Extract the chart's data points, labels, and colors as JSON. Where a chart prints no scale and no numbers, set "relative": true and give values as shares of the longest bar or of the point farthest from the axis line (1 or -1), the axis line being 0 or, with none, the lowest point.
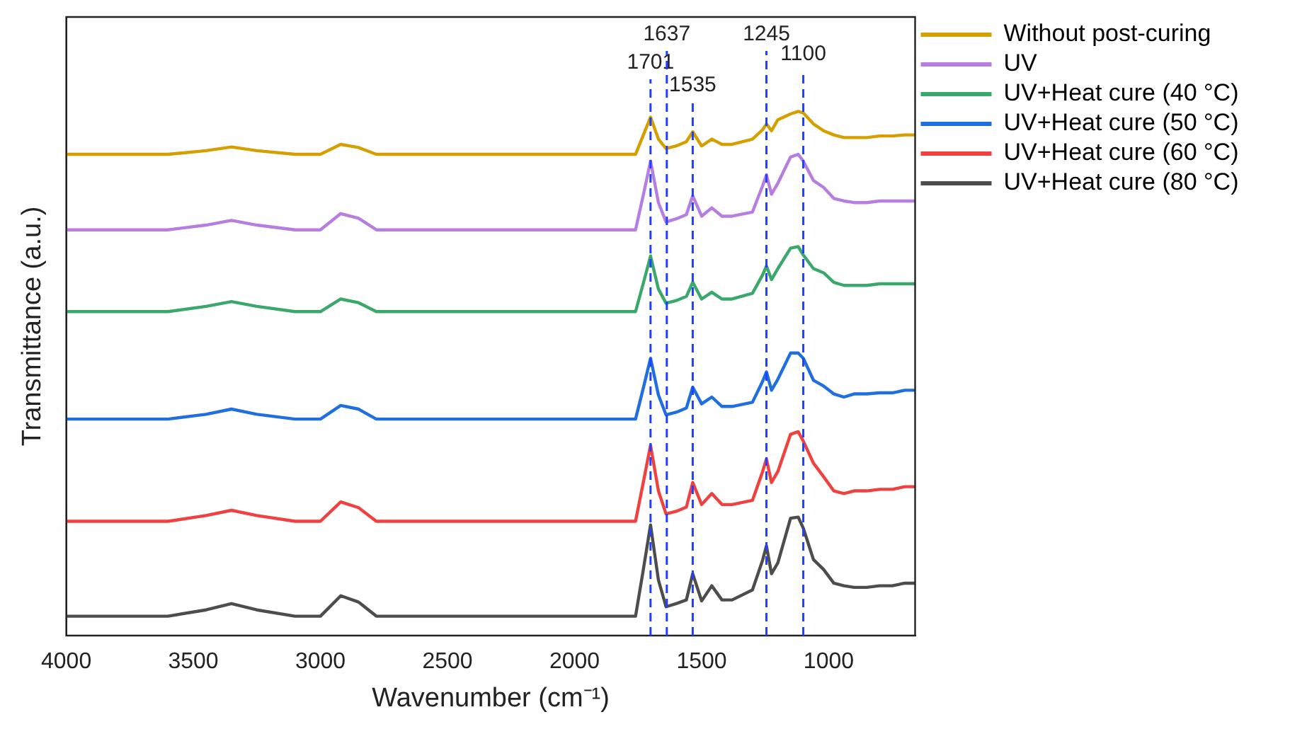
{
  "chart_data": {
    "type": "line",
    "xlabel": "Wavenumber (cm⁻¹)",
    "ylabel": "Transmittance (a.u.)",
    "relative": true,
    "legend": "top right",
    "grid": false,
    "marker": "none",
    "line_style": "solid",
    "x": [
      4000,
      3600,
      3450,
      3350,
      3250,
      3100,
      3000,
      2920,
      2850,
      2780,
      2500,
      2000,
      1760,
      1730,
      1701,
      1670,
      1640,
      1600,
      1560,
      1535,
      1500,
      1460,
      1420,
      1380,
      1300,
      1260,
      1245,
      1225,
      1200,
      1150,
      1120,
      1100,
      1060,
      1020,
      980,
      940,
      900,
      850,
      800,
      750,
      700,
      660
    ],
    "xlim": [
      4000,
      660
    ],
    "xticks": [
      4000,
      3500,
      3000,
      2500,
      2000,
      1500,
      1000
    ],
    "series": [
      {
        "name": "Without post-curing",
        "color": "#d59f00",
        "values": [
          0.918,
          0.918,
          0.925,
          0.932,
          0.925,
          0.918,
          0.918,
          0.937,
          0.931,
          0.918,
          0.918,
          0.918,
          0.918,
          0.954,
          0.989,
          0.947,
          0.929,
          0.934,
          0.942,
          0.961,
          0.934,
          0.947,
          0.937,
          0.937,
          0.947,
          0.965,
          0.976,
          0.963,
          0.984,
          0.995,
          1.0,
          0.997,
          0.976,
          0.963,
          0.955,
          0.95,
          0.95,
          0.95,
          0.953,
          0.953,
          0.955,
          0.955
        ]
      },
      {
        "name": "UV",
        "color": "#b57ee0",
        "values": [
          0.774,
          0.774,
          0.783,
          0.792,
          0.783,
          0.774,
          0.774,
          0.805,
          0.796,
          0.774,
          0.774,
          0.774,
          0.774,
          0.839,
          0.905,
          0.826,
          0.789,
          0.795,
          0.803,
          0.839,
          0.8,
          0.816,
          0.8,
          0.8,
          0.808,
          0.858,
          0.879,
          0.842,
          0.863,
          0.913,
          0.918,
          0.905,
          0.868,
          0.855,
          0.834,
          0.829,
          0.826,
          0.826,
          0.829,
          0.829,
          0.829,
          0.829
        ]
      },
      {
        "name": "UV+Heat cure (40 °C)",
        "color": "#3aa86b",
        "values": [
          0.618,
          0.618,
          0.628,
          0.637,
          0.628,
          0.618,
          0.618,
          0.642,
          0.635,
          0.618,
          0.618,
          0.618,
          0.618,
          0.671,
          0.724,
          0.661,
          0.634,
          0.639,
          0.647,
          0.674,
          0.642,
          0.655,
          0.642,
          0.642,
          0.653,
          0.688,
          0.705,
          0.679,
          0.7,
          0.739,
          0.742,
          0.726,
          0.7,
          0.692,
          0.674,
          0.668,
          0.668,
          0.668,
          0.671,
          0.671,
          0.671,
          0.671
        ]
      },
      {
        "name": "UV+Heat cure (50 °C)",
        "color": "#1f6fe0",
        "values": [
          0.413,
          0.413,
          0.422,
          0.432,
          0.422,
          0.413,
          0.413,
          0.439,
          0.432,
          0.413,
          0.413,
          0.413,
          0.413,
          0.471,
          0.529,
          0.459,
          0.421,
          0.426,
          0.434,
          0.474,
          0.442,
          0.455,
          0.437,
          0.437,
          0.445,
          0.485,
          0.503,
          0.468,
          0.489,
          0.539,
          0.539,
          0.529,
          0.487,
          0.476,
          0.461,
          0.455,
          0.461,
          0.461,
          0.463,
          0.463,
          0.468,
          0.468
        ]
      },
      {
        "name": "UV+Heat cure (60 °C)",
        "color": "#f04040",
        "values": [
          0.218,
          0.218,
          0.229,
          0.239,
          0.229,
          0.218,
          0.218,
          0.255,
          0.244,
          0.218,
          0.218,
          0.218,
          0.218,
          0.291,
          0.363,
          0.276,
          0.232,
          0.237,
          0.245,
          0.292,
          0.25,
          0.271,
          0.25,
          0.25,
          0.258,
          0.313,
          0.337,
          0.292,
          0.313,
          0.384,
          0.389,
          0.371,
          0.329,
          0.303,
          0.276,
          0.271,
          0.276,
          0.276,
          0.279,
          0.279,
          0.284,
          0.284
        ]
      },
      {
        "name": "UV+Heat cure (80 °C)",
        "color": "#4d4d4d",
        "values": [
          0.037,
          0.037,
          0.049,
          0.061,
          0.049,
          0.037,
          0.037,
          0.076,
          0.064,
          0.037,
          0.037,
          0.037,
          0.037,
          0.124,
          0.211,
          0.106,
          0.055,
          0.061,
          0.068,
          0.118,
          0.066,
          0.095,
          0.068,
          0.068,
          0.087,
          0.144,
          0.171,
          0.118,
          0.139,
          0.224,
          0.226,
          0.205,
          0.145,
          0.126,
          0.1,
          0.095,
          0.092,
          0.092,
          0.095,
          0.095,
          0.1,
          0.1
        ]
      }
    ],
    "ref_lines": [
      {
        "axis": "x",
        "value": 1701,
        "label": "1701",
        "color": "#2040ff",
        "line_style": "dashed"
      },
      {
        "axis": "x",
        "value": 1637,
        "label": "1637",
        "color": "#2040ff",
        "line_style": "dashed"
      },
      {
        "axis": "x",
        "value": 1535,
        "label": "1535",
        "color": "#2040ff",
        "line_style": "dashed"
      },
      {
        "axis": "x",
        "value": 1245,
        "label": "1245",
        "color": "#2040ff",
        "line_style": "dashed"
      },
      {
        "axis": "x",
        "value": 1100,
        "label": "1100",
        "color": "#2040ff",
        "line_style": "dashed"
      }
    ]
  }
}
